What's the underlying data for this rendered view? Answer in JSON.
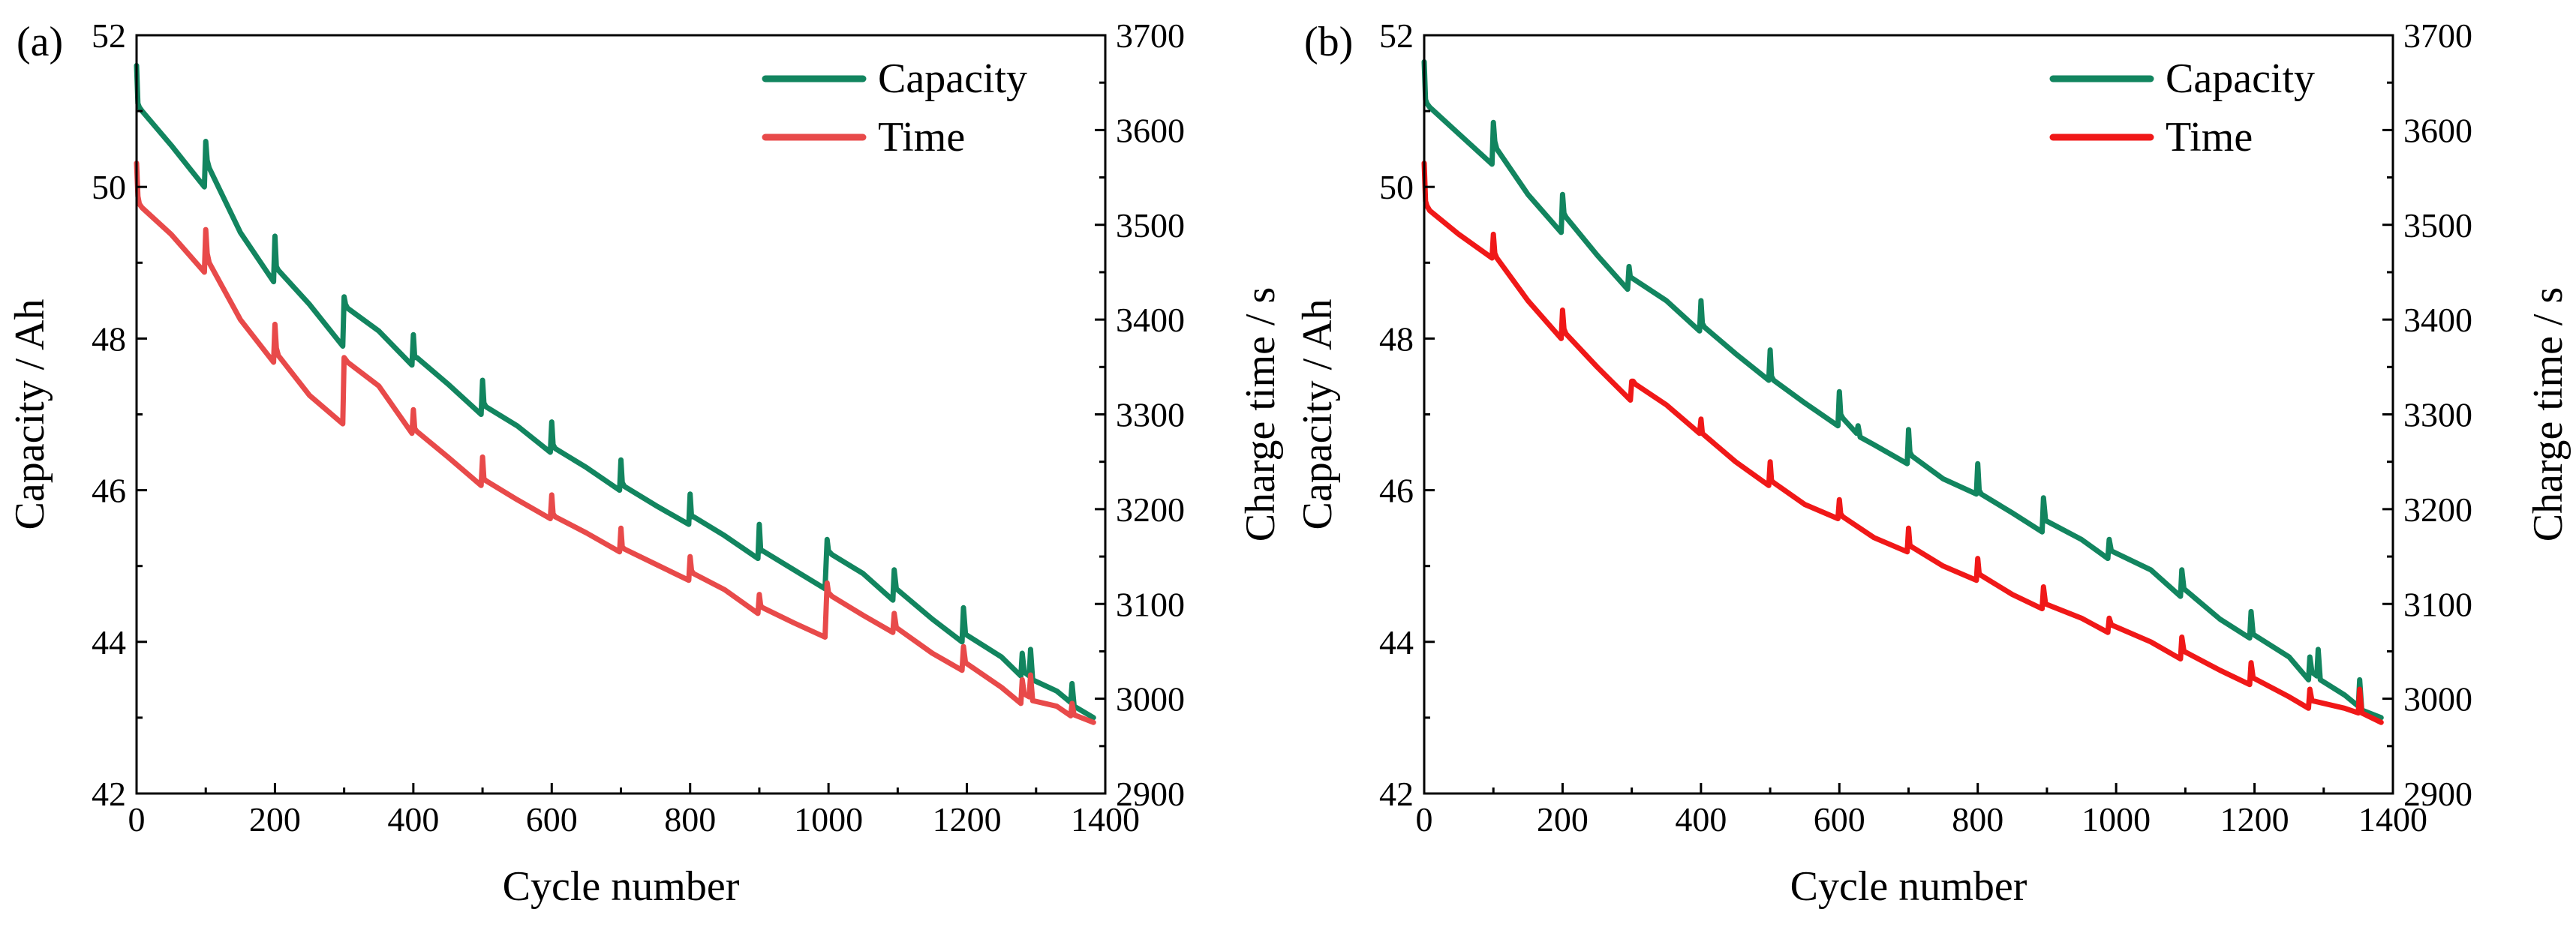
{
  "colors": {
    "capacity": "#12855f",
    "time_a": "#e84a4a",
    "time_b": "#f01818",
    "axis": "#000000"
  },
  "chart_data": [
    {
      "type": "line",
      "panel_label": "(a)",
      "title": "",
      "xlabel": "Cycle number",
      "ylabel": "Capacity / Ah",
      "y2label": "Charge time / s",
      "xlim": [
        0,
        1400
      ],
      "ylim": [
        42,
        52
      ],
      "y2lim": [
        2900,
        3700
      ],
      "xticks": [
        "0",
        "200",
        "400",
        "600",
        "800",
        "1000",
        "1200",
        "1400"
      ],
      "yticks": [
        "42",
        "44",
        "46",
        "48",
        "50",
        "52"
      ],
      "y2ticks": [
        "2900",
        "3000",
        "3100",
        "3200",
        "3300",
        "3400",
        "3500",
        "3600",
        "3700"
      ],
      "legend": [
        "Capacity",
        "Time"
      ],
      "legend_position": "top-right",
      "series": [
        {
          "name": "Capacity",
          "axis": "left",
          "color_key": "capacity",
          "x": [
            0,
            2,
            4,
            8,
            50,
            98,
            100,
            102,
            105,
            150,
            198,
            200,
            202,
            205,
            250,
            298,
            300,
            302,
            305,
            350,
            398,
            400,
            402,
            405,
            450,
            498,
            500,
            502,
            505,
            550,
            598,
            600,
            602,
            605,
            650,
            698,
            700,
            702,
            705,
            750,
            798,
            800,
            802,
            805,
            850,
            898,
            900,
            902,
            905,
            950,
            995,
            998,
            1000,
            1005,
            1050,
            1093,
            1095,
            1098,
            1150,
            1193,
            1195,
            1198,
            1250,
            1278,
            1280,
            1283,
            1290,
            1292,
            1295,
            1330,
            1350,
            1352,
            1355,
            1383
          ],
          "y": [
            51.6,
            51.1,
            51.05,
            51.0,
            50.55,
            50.0,
            50.6,
            50.35,
            50.25,
            49.4,
            48.75,
            49.35,
            48.95,
            48.9,
            48.45,
            47.9,
            48.55,
            48.45,
            48.4,
            48.1,
            47.65,
            48.05,
            47.75,
            47.75,
            47.4,
            47.0,
            47.45,
            47.15,
            47.1,
            46.85,
            46.5,
            46.9,
            46.6,
            46.55,
            46.3,
            46.0,
            46.4,
            46.1,
            46.05,
            45.8,
            45.55,
            45.95,
            45.65,
            45.65,
            45.4,
            45.1,
            45.55,
            45.2,
            45.2,
            44.95,
            44.7,
            45.35,
            45.2,
            45.15,
            44.9,
            44.55,
            44.95,
            44.7,
            44.3,
            44.0,
            44.45,
            44.1,
            43.8,
            43.55,
            43.85,
            43.6,
            43.55,
            43.9,
            43.5,
            43.35,
            43.2,
            43.45,
            43.15,
            43.0
          ]
        },
        {
          "name": "Time",
          "axis": "right",
          "color_key": "time_a",
          "x": [
            0,
            2,
            4,
            8,
            50,
            98,
            100,
            102,
            105,
            150,
            198,
            200,
            202,
            205,
            250,
            298,
            300,
            302,
            305,
            350,
            398,
            400,
            402,
            405,
            450,
            498,
            500,
            502,
            505,
            550,
            598,
            600,
            602,
            605,
            650,
            698,
            700,
            702,
            705,
            750,
            798,
            800,
            802,
            805,
            850,
            898,
            900,
            902,
            905,
            950,
            995,
            998,
            1000,
            1005,
            1050,
            1093,
            1095,
            1098,
            1150,
            1193,
            1195,
            1198,
            1250,
            1278,
            1280,
            1283,
            1290,
            1292,
            1295,
            1330,
            1350,
            1352,
            1355,
            1383
          ],
          "y": [
            3565,
            3530,
            3522,
            3518,
            3490,
            3450,
            3495,
            3470,
            3460,
            3400,
            3355,
            3395,
            3370,
            3362,
            3320,
            3290,
            3360,
            3358,
            3355,
            3330,
            3280,
            3305,
            3285,
            3282,
            3255,
            3225,
            3255,
            3232,
            3230,
            3210,
            3190,
            3215,
            3195,
            3192,
            3175,
            3155,
            3180,
            3160,
            3158,
            3142,
            3125,
            3150,
            3135,
            3132,
            3115,
            3090,
            3110,
            3098,
            3096,
            3080,
            3065,
            3122,
            3112,
            3108,
            3088,
            3070,
            3090,
            3075,
            3048,
            3030,
            3055,
            3038,
            3012,
            2995,
            3020,
            3005,
            3002,
            3025,
            2998,
            2992,
            2982,
            2995,
            2983,
            2975
          ]
        }
      ]
    },
    {
      "type": "line",
      "panel_label": "(b)",
      "title": "",
      "xlabel": "Cycle number",
      "ylabel": "Capacity / Ah",
      "y2label": "Charge time / s",
      "xlim": [
        0,
        1400
      ],
      "ylim": [
        42,
        52
      ],
      "y2lim": [
        2900,
        3700
      ],
      "xticks": [
        "0",
        "200",
        "400",
        "600",
        "800",
        "1000",
        "1200",
        "1400"
      ],
      "yticks": [
        "42",
        "44",
        "46",
        "48",
        "50",
        "52"
      ],
      "y2ticks": [
        "2900",
        "3000",
        "3100",
        "3200",
        "3300",
        "3400",
        "3500",
        "3600",
        "3700"
      ],
      "legend": [
        "Capacity",
        "Time"
      ],
      "legend_position": "top-right",
      "series": [
        {
          "name": "Capacity",
          "axis": "left",
          "color_key": "capacity",
          "x": [
            0,
            2,
            4,
            8,
            50,
            98,
            100,
            102,
            105,
            150,
            198,
            200,
            202,
            205,
            250,
            294,
            296,
            298,
            300,
            350,
            398,
            400,
            402,
            405,
            450,
            498,
            500,
            502,
            505,
            550,
            598,
            600,
            602,
            605,
            625,
            627,
            630,
            650,
            698,
            700,
            702,
            705,
            750,
            798,
            800,
            802,
            805,
            850,
            893,
            895,
            898,
            950,
            988,
            990,
            993,
            1050,
            1093,
            1095,
            1098,
            1150,
            1193,
            1195,
            1198,
            1250,
            1278,
            1280,
            1283,
            1290,
            1292,
            1295,
            1330,
            1350,
            1352,
            1355,
            1383
          ],
          "y": [
            51.65,
            51.15,
            51.1,
            51.05,
            50.7,
            50.3,
            50.85,
            50.6,
            50.5,
            49.9,
            49.4,
            49.9,
            49.65,
            49.6,
            49.1,
            48.65,
            48.95,
            48.8,
            48.8,
            48.5,
            48.1,
            48.5,
            48.2,
            48.15,
            47.8,
            47.45,
            47.85,
            47.5,
            47.45,
            47.15,
            46.85,
            47.3,
            47.0,
            46.95,
            46.75,
            46.85,
            46.7,
            46.6,
            46.35,
            46.8,
            46.5,
            46.45,
            46.15,
            45.95,
            46.35,
            46.0,
            45.95,
            45.7,
            45.45,
            45.9,
            45.6,
            45.35,
            45.1,
            45.35,
            45.2,
            44.95,
            44.6,
            44.95,
            44.7,
            44.3,
            44.05,
            44.4,
            44.1,
            43.8,
            43.5,
            43.8,
            43.6,
            43.55,
            43.9,
            43.5,
            43.3,
            43.15,
            43.5,
            43.1,
            43.0
          ]
        },
        {
          "name": "Time",
          "axis": "right",
          "color_key": "time_b",
          "x": [
            0,
            2,
            4,
            8,
            50,
            98,
            100,
            102,
            105,
            150,
            198,
            200,
            202,
            205,
            250,
            298,
            300,
            302,
            305,
            350,
            398,
            400,
            402,
            405,
            450,
            498,
            500,
            502,
            505,
            550,
            598,
            600,
            602,
            605,
            650,
            698,
            700,
            702,
            705,
            750,
            798,
            800,
            802,
            805,
            850,
            893,
            895,
            898,
            950,
            988,
            990,
            993,
            1050,
            1093,
            1095,
            1098,
            1150,
            1193,
            1195,
            1198,
            1250,
            1278,
            1280,
            1283,
            1330,
            1350,
            1352,
            1355,
            1383
          ],
          "y": [
            3565,
            3525,
            3520,
            3515,
            3490,
            3465,
            3490,
            3470,
            3465,
            3420,
            3380,
            3410,
            3390,
            3385,
            3350,
            3315,
            3335,
            3335,
            3332,
            3310,
            3280,
            3295,
            3280,
            3278,
            3250,
            3225,
            3250,
            3230,
            3228,
            3205,
            3190,
            3210,
            3195,
            3192,
            3170,
            3155,
            3180,
            3162,
            3160,
            3140,
            3125,
            3148,
            3132,
            3130,
            3110,
            3095,
            3118,
            3100,
            3085,
            3070,
            3085,
            3078,
            3060,
            3042,
            3065,
            3050,
            3030,
            3015,
            3038,
            3022,
            3002,
            2990,
            3010,
            2998,
            2990,
            2985,
            3010,
            2985,
            2975
          ]
        }
      ]
    }
  ]
}
